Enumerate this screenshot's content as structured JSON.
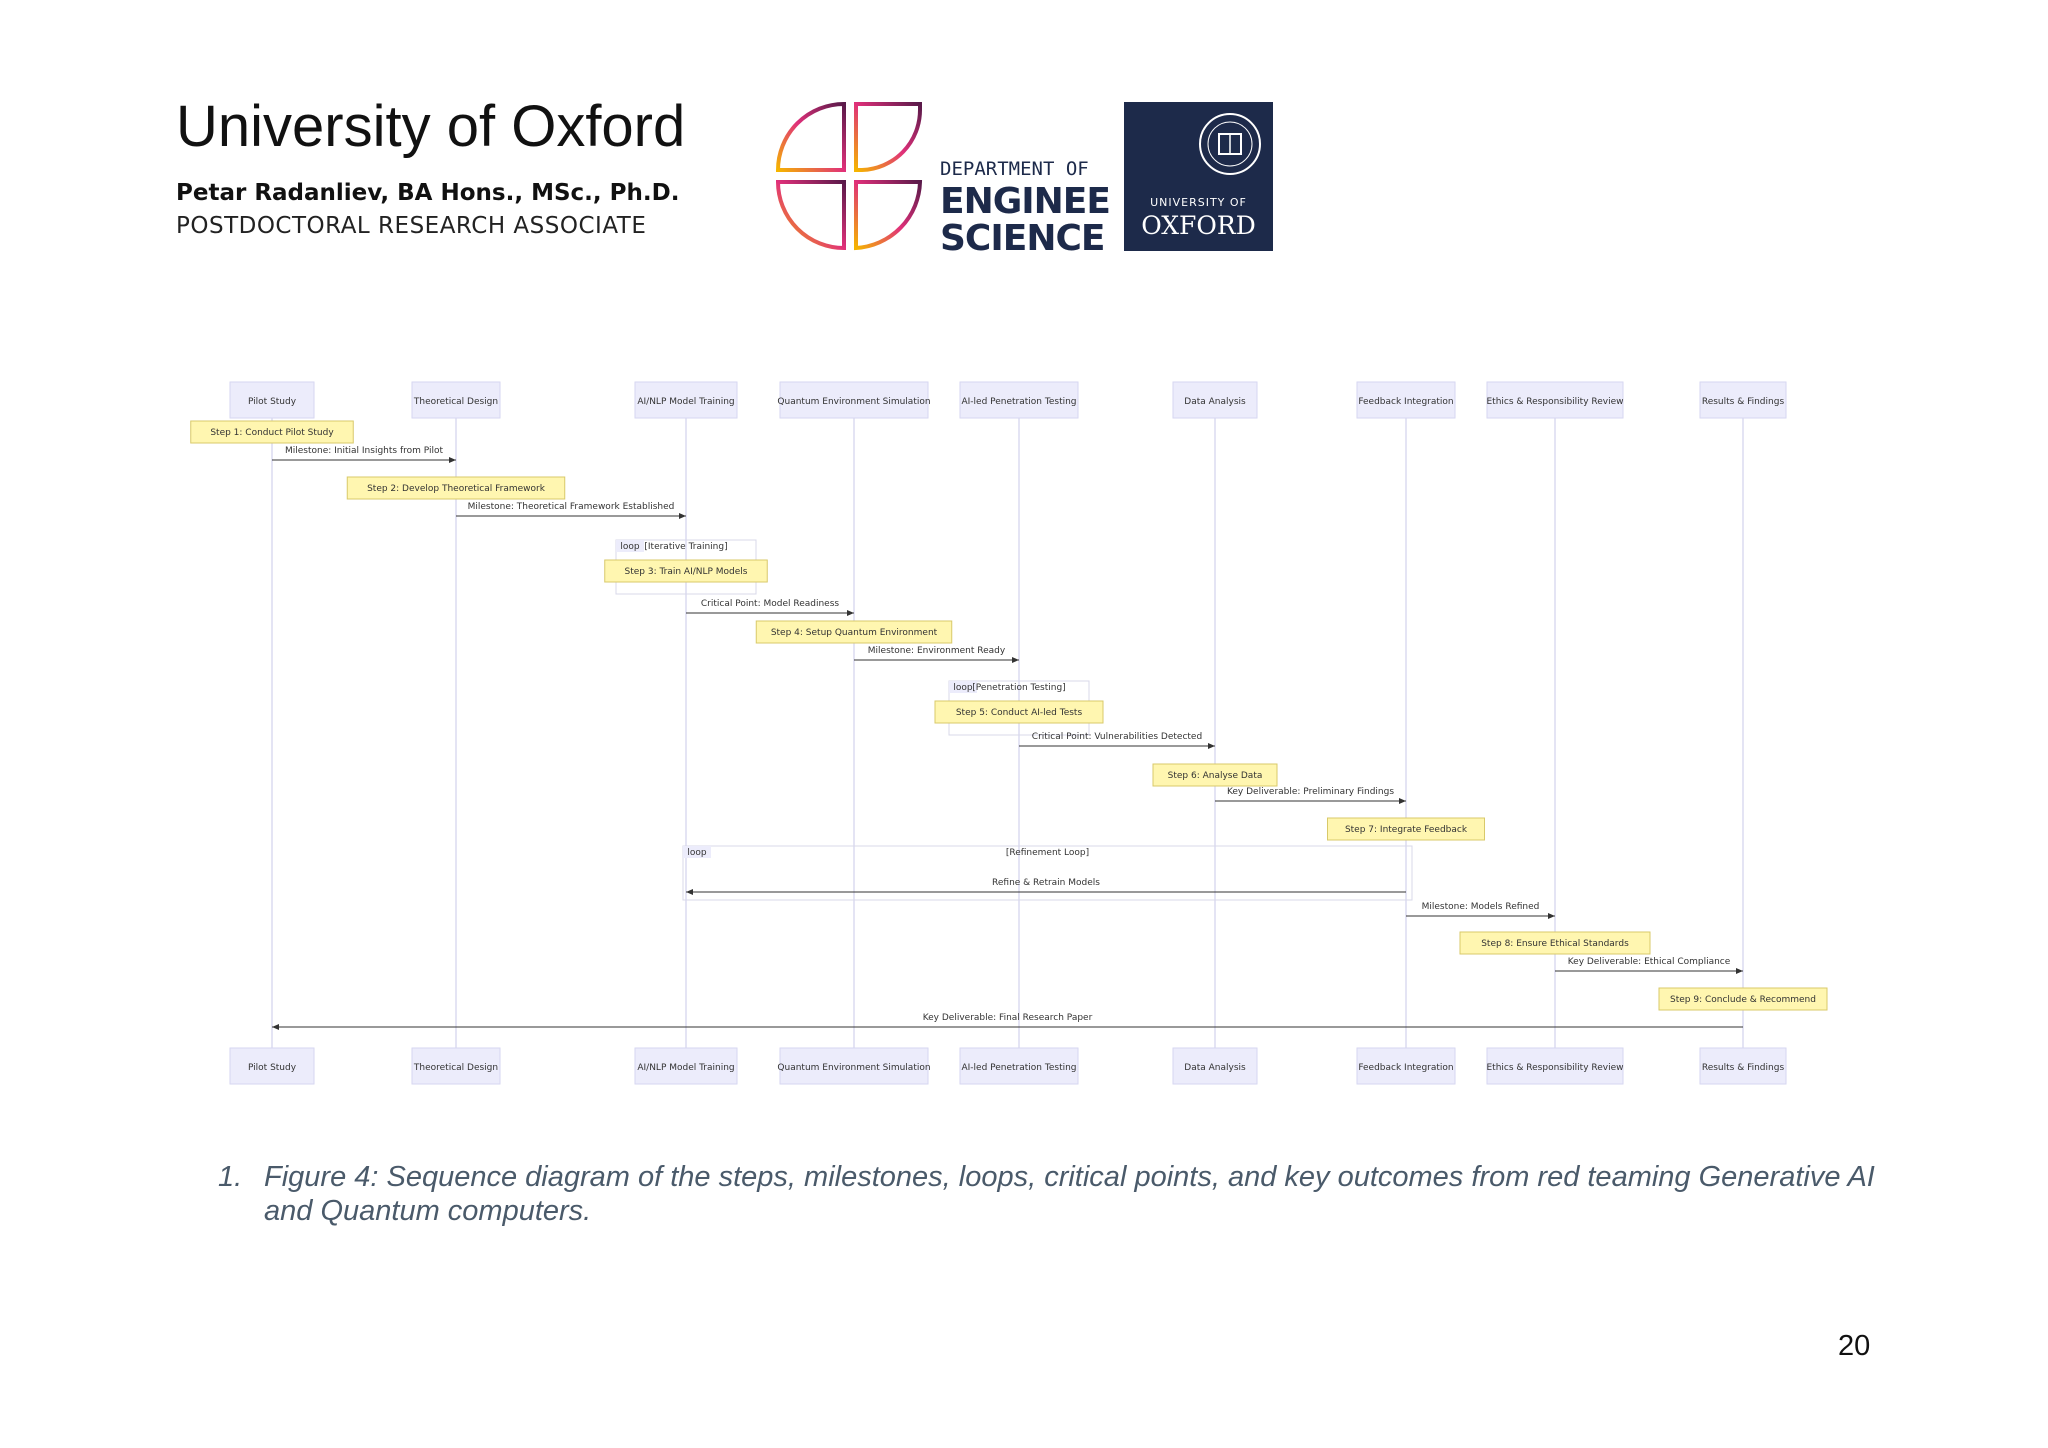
{
  "header": {
    "title": "University of Oxford",
    "author": "Petar Radanliev, BA Hons., MSc., Ph.D.",
    "role": "POSTDOCTORAL RESEARCH ASSOCIATE",
    "eng_logo_lines": [
      "DEPARTMENT OF",
      "ENGINEERING",
      "SCIENCE"
    ],
    "ox_logo_lines": [
      "UNIVERSITY OF",
      "OXFORD"
    ]
  },
  "diagram": {
    "participants": [
      "Pilot Study",
      "Theoretical Design",
      "AI/NLP Model Training",
      "Quantum Environment Simulation",
      "AI-led Penetration Testing",
      "Data Analysis",
      "Feedback Integration",
      "Ethics & Responsibility Review",
      "Results & Findings"
    ],
    "events": [
      {
        "type": "note",
        "over": 0,
        "text": "Step 1: Conduct Pilot Study"
      },
      {
        "type": "msg",
        "from": 0,
        "to": 1,
        "text": "Milestone: Initial Insights from Pilot"
      },
      {
        "type": "note",
        "over": 1,
        "text": "Step 2: Develop Theoretical Framework"
      },
      {
        "type": "msg",
        "from": 1,
        "to": 2,
        "text": "Milestone: Theoretical Framework Established"
      },
      {
        "type": "loop",
        "label": "loop",
        "cond": "[Iterative Training]",
        "note_over": 2,
        "note": "Step 3: Train AI/NLP Models"
      },
      {
        "type": "msg",
        "from": 2,
        "to": 3,
        "text": "Critical Point: Model Readiness"
      },
      {
        "type": "note",
        "over": 3,
        "text": "Step 4: Setup Quantum Environment"
      },
      {
        "type": "msg",
        "from": 3,
        "to": 4,
        "text": "Milestone: Environment Ready"
      },
      {
        "type": "loop",
        "label": "loop",
        "cond": "[Penetration Testing]",
        "note_over": 4,
        "note": "Step 5: Conduct AI-led Tests"
      },
      {
        "type": "msg",
        "from": 4,
        "to": 5,
        "text": "Critical Point: Vulnerabilities Detected"
      },
      {
        "type": "note",
        "over": 5,
        "text": "Step 6: Analyse Data"
      },
      {
        "type": "msg",
        "from": 5,
        "to": 6,
        "text": "Key Deliverable: Preliminary Findings"
      },
      {
        "type": "note",
        "over": 6,
        "text": "Step 7: Integrate Feedback"
      },
      {
        "type": "loopmsg",
        "label": "loop",
        "cond": "[Refinement Loop]",
        "from": 6,
        "to": 2,
        "text": "Refine & Retrain Models"
      },
      {
        "type": "msg",
        "from": 6,
        "to": 7,
        "text": "Milestone: Models Refined"
      },
      {
        "type": "note",
        "over": 7,
        "text": "Step 8: Ensure Ethical Standards"
      },
      {
        "type": "msg",
        "from": 7,
        "to": 8,
        "text": "Key Deliverable: Ethical Compliance"
      },
      {
        "type": "note",
        "over": 8,
        "text": "Step 9: Conclude & Recommend"
      },
      {
        "type": "msg",
        "from": 8,
        "to": 0,
        "text": "Key Deliverable: Final Research Paper"
      }
    ]
  },
  "caption": {
    "number": "1.",
    "text": "Figure 4: Sequence diagram of the steps, milestones, loops, critical points, and key outcomes from red teaming Generative AI and Quantum computers."
  },
  "page_number": "20"
}
